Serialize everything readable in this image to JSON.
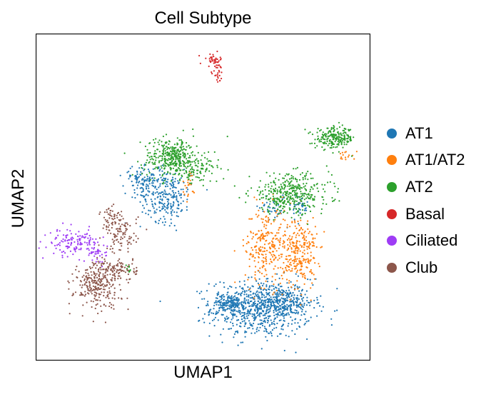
{
  "chart_data": {
    "type": "scatter",
    "title": "Cell Subtype",
    "xlabel": "UMAP1",
    "ylabel": "UMAP2",
    "xlim": [
      0,
      10
    ],
    "ylim": [
      0,
      10
    ],
    "grid": false,
    "legend_position": "right",
    "series": [
      {
        "name": "AT1",
        "color": "#1f77b4",
        "clusters": [
          {
            "cx": 6.75,
            "cy": 1.6,
            "sx": 0.75,
            "sy": 0.45,
            "n": 700
          },
          {
            "cx": 5.75,
            "cy": 1.75,
            "sx": 0.28,
            "sy": 0.14,
            "n": 140
          },
          {
            "cx": 7.3,
            "cy": 1.8,
            "sx": 0.5,
            "sy": 0.2,
            "n": 200
          },
          {
            "cx": 3.9,
            "cy": 5.05,
            "sx": 0.38,
            "sy": 0.4,
            "n": 260
          },
          {
            "cx": 3.2,
            "cy": 5.55,
            "sx": 0.3,
            "sy": 0.18,
            "n": 100
          },
          {
            "cx": 7.9,
            "cy": 4.7,
            "sx": 0.12,
            "sy": 0.22,
            "n": 40
          },
          {
            "cx": 7.1,
            "cy": 4.7,
            "sx": 0.2,
            "sy": 0.22,
            "n": 40
          }
        ]
      },
      {
        "name": "AT1/AT2",
        "color": "#ff7f0e",
        "clusters": [
          {
            "cx": 6.9,
            "cy": 3.5,
            "sx": 0.32,
            "sy": 0.6,
            "n": 260
          },
          {
            "cx": 7.9,
            "cy": 3.3,
            "sx": 0.25,
            "sy": 0.55,
            "n": 260
          },
          {
            "cx": 4.6,
            "cy": 5.4,
            "sx": 0.1,
            "sy": 0.22,
            "n": 25
          },
          {
            "cx": 9.3,
            "cy": 6.3,
            "sx": 0.12,
            "sy": 0.08,
            "n": 15
          }
        ]
      },
      {
        "name": "AT2",
        "color": "#2ca02c",
        "clusters": [
          {
            "cx": 4.1,
            "cy": 6.2,
            "sx": 0.45,
            "sy": 0.3,
            "n": 380
          },
          {
            "cx": 4.9,
            "cy": 5.8,
            "sx": 0.28,
            "sy": 0.18,
            "n": 70
          },
          {
            "cx": 7.6,
            "cy": 5.1,
            "sx": 0.6,
            "sy": 0.3,
            "n": 380
          },
          {
            "cx": 8.95,
            "cy": 6.8,
            "sx": 0.3,
            "sy": 0.16,
            "n": 220
          },
          {
            "cx": 2.8,
            "cy": 2.8,
            "sx": 0.05,
            "sy": 0.05,
            "n": 8
          }
        ]
      },
      {
        "name": "Basal",
        "color": "#d62728",
        "clusters": [
          {
            "cx": 5.3,
            "cy": 9.2,
            "sx": 0.14,
            "sy": 0.1,
            "n": 35
          },
          {
            "cx": 5.45,
            "cy": 8.8,
            "sx": 0.08,
            "sy": 0.16,
            "n": 25
          }
        ]
      },
      {
        "name": "Ciliated",
        "color": "#9e3cf5",
        "clusters": [
          {
            "cx": 1.15,
            "cy": 3.6,
            "sx": 0.38,
            "sy": 0.2,
            "n": 140
          },
          {
            "cx": 1.8,
            "cy": 3.3,
            "sx": 0.18,
            "sy": 0.12,
            "n": 30
          }
        ]
      },
      {
        "name": "Club",
        "color": "#8c564b",
        "clusters": [
          {
            "cx": 1.85,
            "cy": 2.3,
            "sx": 0.35,
            "sy": 0.35,
            "n": 260
          },
          {
            "cx": 2.4,
            "cy": 2.8,
            "sx": 0.32,
            "sy": 0.18,
            "n": 100
          },
          {
            "cx": 2.55,
            "cy": 3.9,
            "sx": 0.25,
            "sy": 0.3,
            "n": 110
          },
          {
            "cx": 2.2,
            "cy": 4.4,
            "sx": 0.14,
            "sy": 0.18,
            "n": 35
          }
        ]
      }
    ]
  }
}
